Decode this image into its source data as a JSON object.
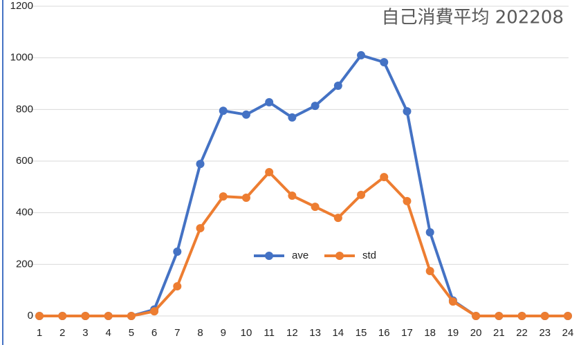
{
  "chart_data": {
    "type": "line",
    "title": "自己消費平均  202208",
    "categories": [
      "1",
      "2",
      "3",
      "4",
      "5",
      "6",
      "7",
      "8",
      "9",
      "10",
      "11",
      "12",
      "13",
      "14",
      "15",
      "16",
      "17",
      "18",
      "19",
      "20",
      "21",
      "22",
      "23",
      "24"
    ],
    "series": [
      {
        "name": "ave",
        "color": "#4472c4",
        "values": [
          0,
          0,
          0,
          0,
          0,
          25,
          249,
          589,
          795,
          780,
          828,
          769,
          814,
          892,
          1010,
          983,
          793,
          324,
          60,
          0,
          0,
          0,
          0,
          0
        ]
      },
      {
        "name": "std",
        "color": "#ed7d31",
        "values": [
          0,
          0,
          0,
          0,
          0,
          18,
          115,
          340,
          463,
          458,
          557,
          466,
          423,
          380,
          469,
          538,
          445,
          174,
          56,
          0,
          0,
          0,
          0,
          0
        ]
      }
    ],
    "ylim": [
      0,
      1200
    ],
    "yticks": [
      0,
      200,
      400,
      600,
      800,
      1000,
      1200
    ],
    "grid": true
  }
}
